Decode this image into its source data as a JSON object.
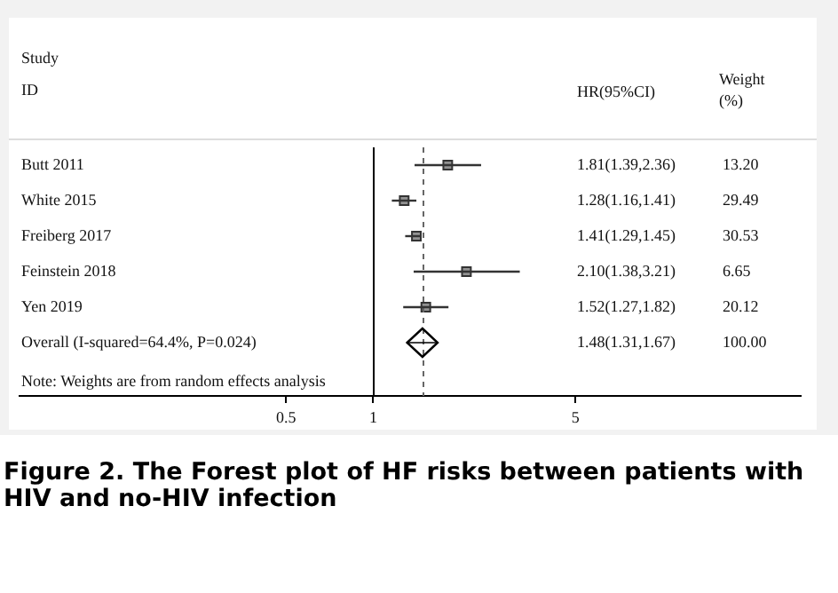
{
  "chart_data": {
    "type": "scatter",
    "title": "Figure 2. The Forest plot of HF risks between patients with HIV and no-HIV infection",
    "ylabel": "Study ID",
    "orientation": "horizontal",
    "log": "x",
    "categories": [
      "Butt 2011",
      "White 2015",
      "Freiberg 2017",
      "Feinstein 2018",
      "Yen 2019",
      "Overall (I-squared=64.4%, P=0.024)"
    ],
    "series": [
      {
        "color": "#333333",
        "marker": "square",
        "values": [
          1.81,
          1.28,
          1.41,
          2.1,
          1.52,
          null
        ],
        "errors": [
          [
            1.39,
            2.36
          ],
          [
            1.16,
            1.41
          ],
          [
            1.29,
            1.45
          ],
          [
            1.38,
            3.21
          ],
          [
            1.27,
            1.82
          ],
          null
        ]
      },
      {
        "color": "#000000",
        "marker": "diamond",
        "values": [
          null,
          null,
          null,
          null,
          null,
          1.48
        ],
        "errors": [
          null,
          null,
          null,
          null,
          null,
          [
            1.31,
            1.67
          ]
        ]
      }
    ],
    "xlim": [
      0.06,
      30
    ],
    "xticks": [
      0.5,
      1,
      5
    ],
    "grid": false,
    "legend": false,
    "ref_lines": [
      {
        "axis": "x",
        "value": 1,
        "color": "#000000",
        "line_style": "solid"
      },
      {
        "axis": "x",
        "value": 1.48,
        "color": "#666666",
        "line_style": "dashed"
      }
    ],
    "annotations": [
      "HR(95%CI)",
      "Weight (%)",
      "1.81(1.39,2.36)",
      "13.20",
      "1.28(1.16,1.41)",
      "29.49",
      "1.41(1.29,1.45)",
      "30.53",
      "2.10(1.38,3.21)",
      "6.65",
      "1.52(1.27,1.82)",
      "20.12",
      "1.48(1.31,1.67)",
      "100.00",
      "Note: Weights are from random effects analysis"
    ]
  }
}
